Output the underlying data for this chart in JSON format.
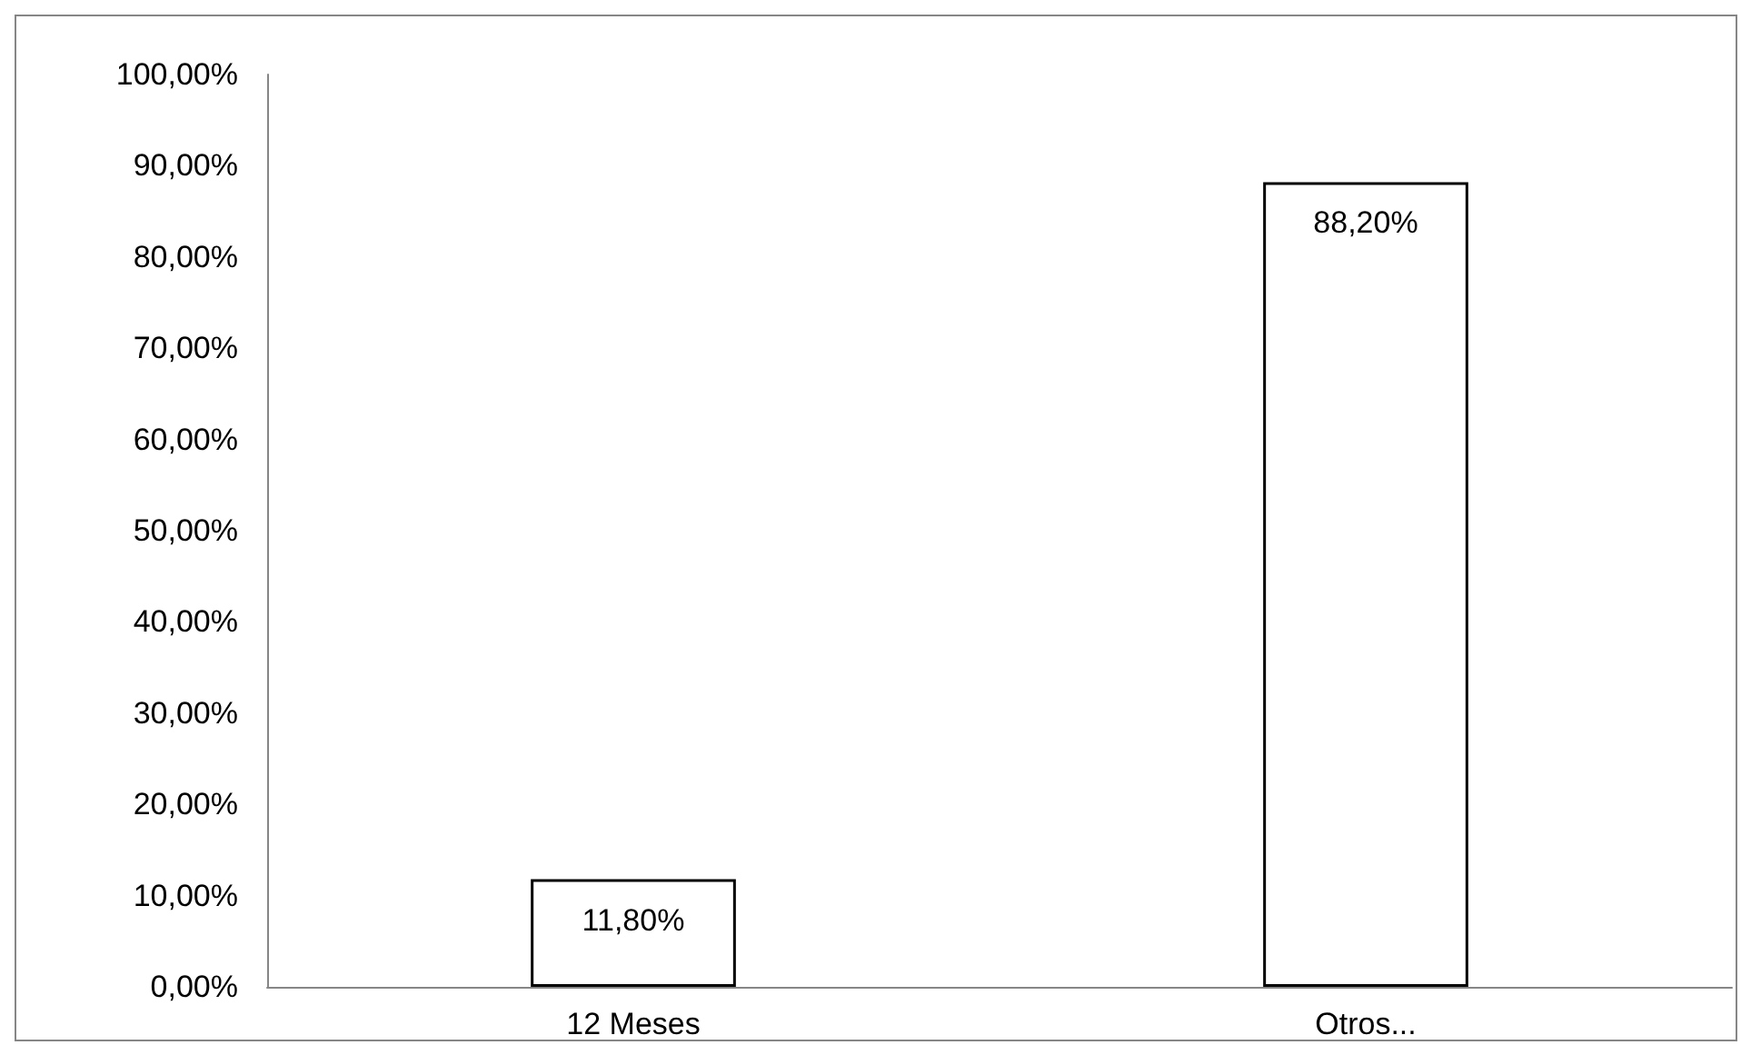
{
  "chart_data": {
    "type": "bar",
    "categories": [
      "12 Meses",
      "Otros..."
    ],
    "values": [
      11.8,
      88.2
    ],
    "color": "#ffffff",
    "value_labels": [
      "11,80%",
      "88,20%"
    ],
    "ylim": [
      0,
      100
    ],
    "yticks": [
      {
        "value": 0,
        "label": "0,00%"
      },
      {
        "value": 10,
        "label": "10,00%"
      },
      {
        "value": 20,
        "label": "20,00%"
      },
      {
        "value": 30,
        "label": "30,00%"
      },
      {
        "value": 40,
        "label": "40,00%"
      },
      {
        "value": 50,
        "label": "50,00%"
      },
      {
        "value": 60,
        "label": "60,00%"
      },
      {
        "value": 70,
        "label": "70,00%"
      },
      {
        "value": 80,
        "label": "80,00%"
      },
      {
        "value": 90,
        "label": "90,00%"
      },
      {
        "value": 100,
        "label": "100,00%"
      }
    ],
    "grid": false
  }
}
